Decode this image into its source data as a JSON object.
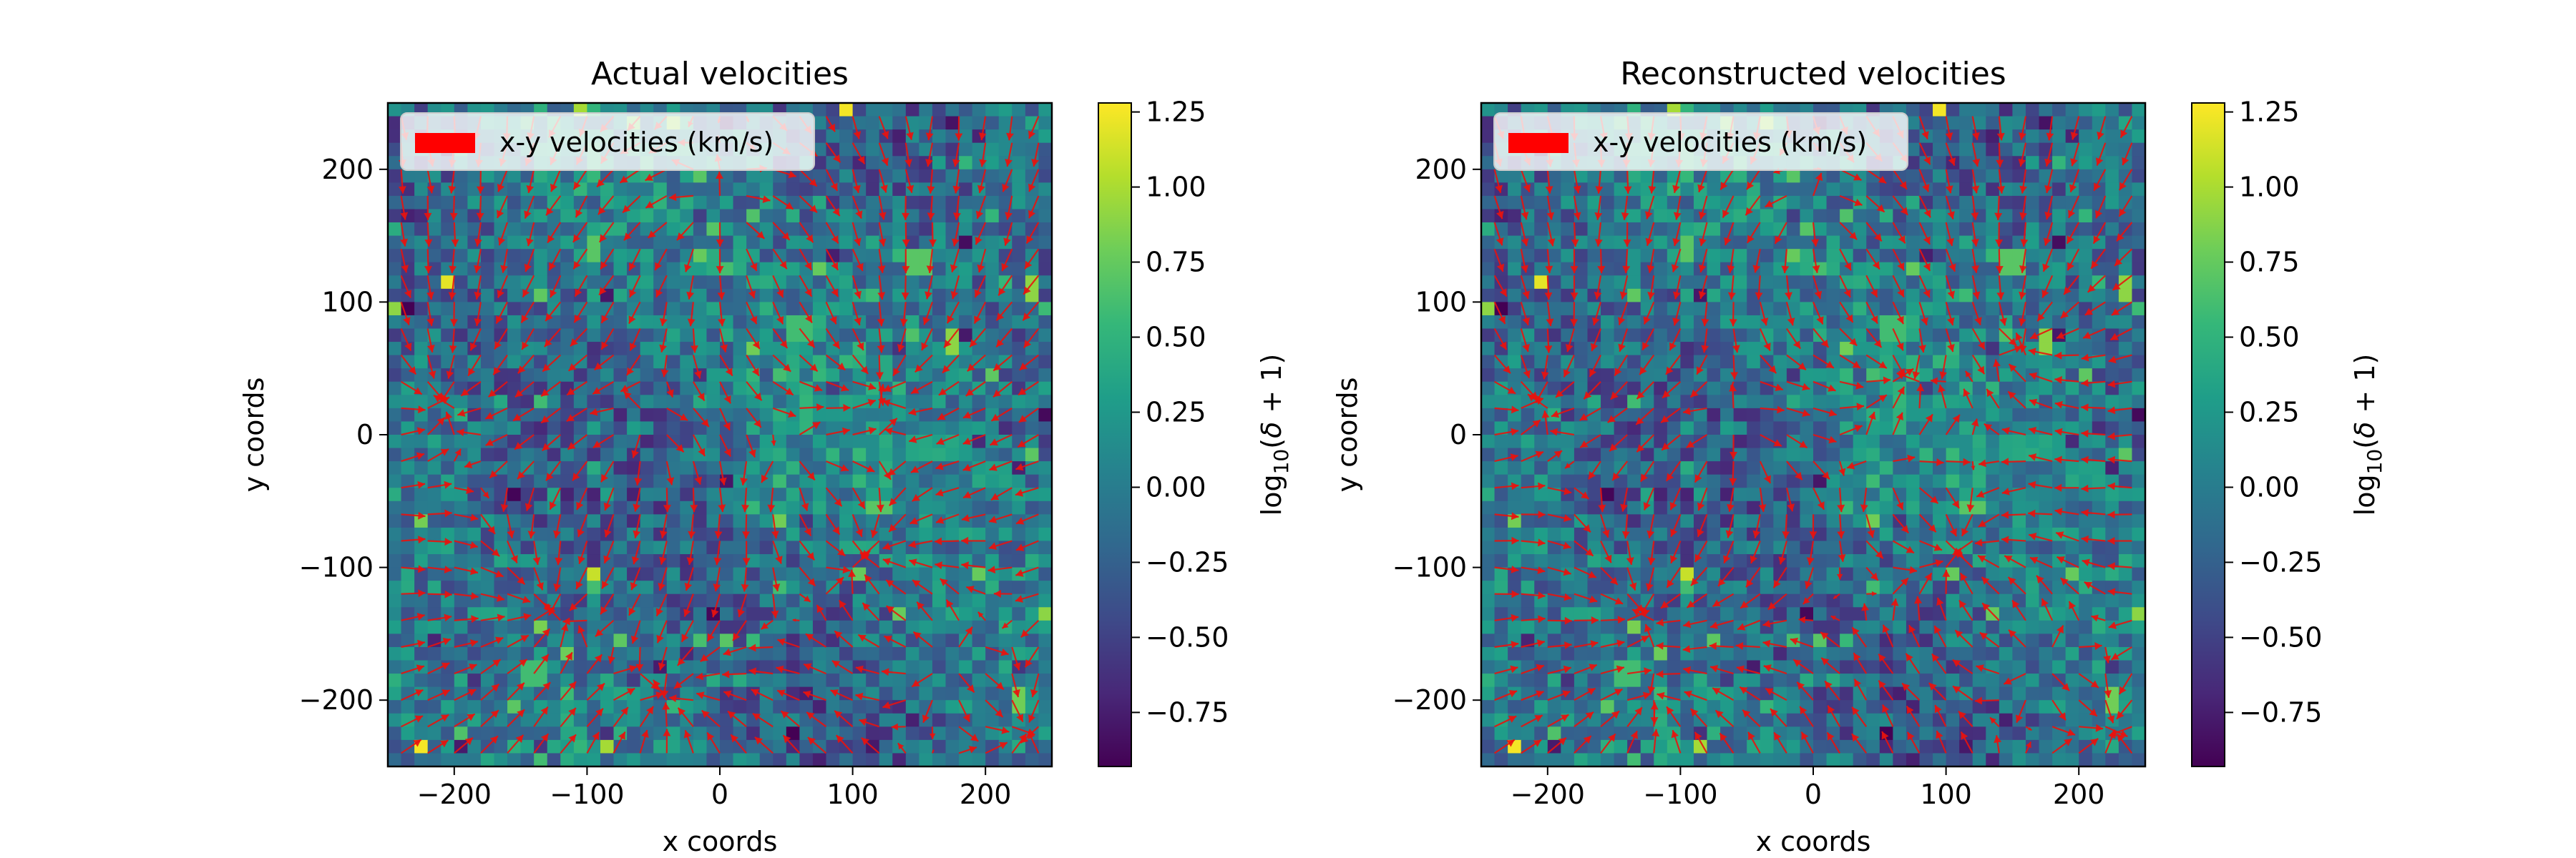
{
  "chart_data": [
    {
      "type": "heatmap",
      "title": "Actual velocities",
      "xlabel": "x coords",
      "ylabel": "y coords",
      "xlim": [
        -250,
        250
      ],
      "ylim": [
        -250,
        250
      ],
      "xticks": [
        -200,
        -100,
        0,
        100,
        200
      ],
      "yticks": [
        -200,
        -100,
        0,
        100,
        200
      ],
      "grid_cells": 50,
      "colormap": "viridis",
      "colorbar": {
        "label": "log10(δ + 1)",
        "min": -0.93,
        "max": 1.28,
        "ticks": [
          -0.75,
          -0.5,
          -0.25,
          0.0,
          0.25,
          0.5,
          0.75,
          1.0,
          1.25
        ]
      },
      "overlay": {
        "type": "quiver",
        "color": "#ff0000",
        "legend": "x-y velocities (km/s)",
        "legend_position": "upper left"
      },
      "seed": 12345,
      "hotspots": [
        [
          -225,
          -232,
          1.25
        ],
        [
          -205,
          118,
          1.2
        ],
        [
          -95,
          -105,
          1.1
        ],
        [
          95,
          246,
          1.25
        ],
        [
          -245,
          95,
          0.9
        ],
        [
          233,
          110,
          0.9
        ],
        [
          28,
          65,
          0.8
        ],
        [
          42,
          -65,
          0.8
        ],
        [
          120,
          -52,
          0.7
        ],
        [
          225,
          -200,
          0.8
        ],
        [
          -95,
          140,
          0.7
        ],
        [
          150,
          130,
          0.7
        ],
        [
          -140,
          -180,
          0.6
        ],
        [
          60,
          80,
          0.6
        ],
        [
          178,
          70,
          0.9
        ],
        [
          5,
          -155,
          0.7
        ]
      ],
      "sinks": [
        [
          110,
          -90
        ],
        [
          235,
          -225
        ],
        [
          -40,
          -200
        ],
        [
          -130,
          -130
        ],
        [
          120,
          40
        ],
        [
          -210,
          30
        ]
      ],
      "sources": [
        [
          60,
          -20
        ],
        [
          -60,
          0
        ],
        [
          0,
          170
        ],
        [
          170,
          -170
        ]
      ]
    },
    {
      "type": "heatmap",
      "title": "Reconstructed velocities",
      "xlabel": "x coords",
      "ylabel": "y coords",
      "xlim": [
        -250,
        250
      ],
      "ylim": [
        -250,
        250
      ],
      "xticks": [
        -200,
        -100,
        0,
        100,
        200
      ],
      "yticks": [
        -200,
        -100,
        0,
        100,
        200
      ],
      "grid_cells": 50,
      "colormap": "viridis",
      "colorbar": {
        "label": "log10(δ + 1)",
        "min": -0.93,
        "max": 1.28,
        "ticks": [
          -0.75,
          -0.5,
          -0.25,
          0.0,
          0.25,
          0.5,
          0.75,
          1.0,
          1.25
        ]
      },
      "overlay": {
        "type": "quiver",
        "color": "#ff0000",
        "legend": "x-y velocities (km/s)",
        "legend_position": "upper left"
      },
      "seed": 12345,
      "hotspots": [
        [
          -225,
          -232,
          1.25
        ],
        [
          -205,
          118,
          1.2
        ],
        [
          -95,
          -105,
          1.1
        ],
        [
          95,
          246,
          1.25
        ],
        [
          -245,
          95,
          0.9
        ],
        [
          233,
          110,
          0.9
        ],
        [
          28,
          65,
          0.8
        ],
        [
          42,
          -65,
          0.8
        ],
        [
          120,
          -52,
          0.7
        ],
        [
          225,
          -200,
          0.8
        ],
        [
          -95,
          140,
          0.7
        ],
        [
          150,
          130,
          0.7
        ],
        [
          -140,
          -180,
          0.6
        ],
        [
          60,
          80,
          0.6
        ],
        [
          178,
          70,
          0.9
        ],
        [
          5,
          -155,
          0.7
        ]
      ],
      "sinks": [
        [
          110,
          -90
        ],
        [
          230,
          -225
        ],
        [
          -120,
          -205
        ],
        [
          -130,
          -130
        ],
        [
          65,
          45
        ],
        [
          -210,
          30
        ],
        [
          160,
          75
        ]
      ],
      "sources": [
        [
          60,
          -20
        ],
        [
          -60,
          0
        ],
        [
          0,
          170
        ],
        [
          170,
          -170
        ]
      ]
    }
  ]
}
